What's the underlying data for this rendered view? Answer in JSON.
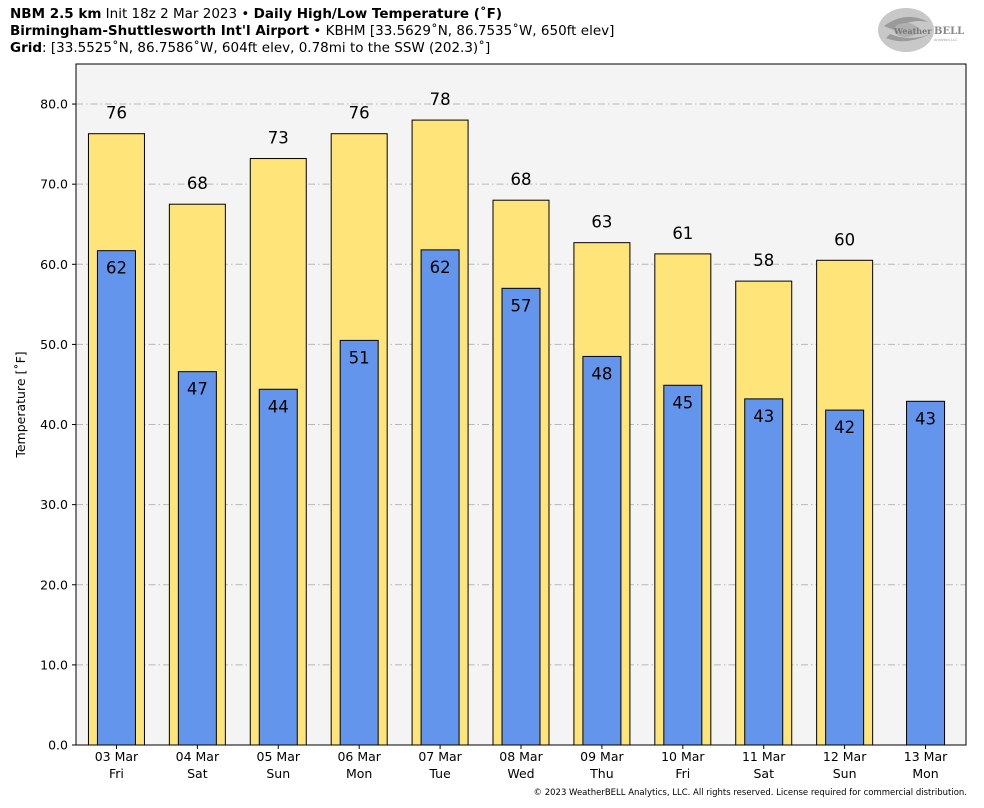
{
  "header": {
    "line1_bold_a": "NBM 2.5 km",
    "line1_normal": " Init 18z 2 Mar 2023 • ",
    "line1_bold_b": "Daily High/Low Temperature (˚F)",
    "line2_bold": "Birmingham-Shuttlesworth Int'l Airport",
    "line2_normal": " • KBHM [33.5629˚N, 86.7535˚W, 650ft elev]",
    "line3_bold": "Grid",
    "line3_normal": ": [33.5525˚N, 86.7586˚W, 604ft elev, 0.78mi to the SSW (202.3)˚]"
  },
  "logo": {
    "text_a": "Weather",
    "text_b": "BELL",
    "tagline": "Analytics LLC"
  },
  "copyright": "© 2023 WeatherBELL Analytics, LLC. All rights reserved. License required for commercial distribution.",
  "colors": {
    "high": "#ffe47a",
    "low": "#6495ed",
    "plot_bg": "#f4f4f4",
    "grid": "#b8b8b8"
  },
  "chart_data": {
    "type": "bar",
    "title": "Daily High/Low Temperature (˚F)",
    "xlabel": "",
    "ylabel": "Temperature [˚F]",
    "ylim": [
      0,
      85
    ],
    "yticks": [
      "0.0",
      "10.0",
      "20.0",
      "30.0",
      "40.0",
      "50.0",
      "60.0",
      "70.0",
      "80.0"
    ],
    "ytick_values": [
      0,
      10,
      20,
      30,
      40,
      50,
      60,
      70,
      80
    ],
    "grid": true,
    "categories": [
      [
        "03 Mar",
        "Fri"
      ],
      [
        "04 Mar",
        "Sat"
      ],
      [
        "05 Mar",
        "Sun"
      ],
      [
        "06 Mar",
        "Mon"
      ],
      [
        "07 Mar",
        "Tue"
      ],
      [
        "08 Mar",
        "Wed"
      ],
      [
        "09 Mar",
        "Thu"
      ],
      [
        "10 Mar",
        "Fri"
      ],
      [
        "11 Mar",
        "Sat"
      ],
      [
        "12 Mar",
        "Sun"
      ],
      [
        "13 Mar",
        "Mon"
      ]
    ],
    "series": [
      {
        "values": [
          76.3,
          67.5,
          73.2,
          76.3,
          78.0,
          68.0,
          62.7,
          61.3,
          57.9,
          60.5,
          null
        ],
        "labels": [
          "76",
          "68",
          "73",
          "76",
          "78",
          "68",
          "63",
          "61",
          "58",
          "60",
          ""
        ]
      },
      {
        "values": [
          61.7,
          46.6,
          44.4,
          50.5,
          61.8,
          57.0,
          48.5,
          44.9,
          43.2,
          41.8,
          42.9
        ],
        "labels": [
          "62",
          "47",
          "44",
          "51",
          "62",
          "57",
          "48",
          "45",
          "43",
          "42",
          "43"
        ]
      }
    ]
  }
}
